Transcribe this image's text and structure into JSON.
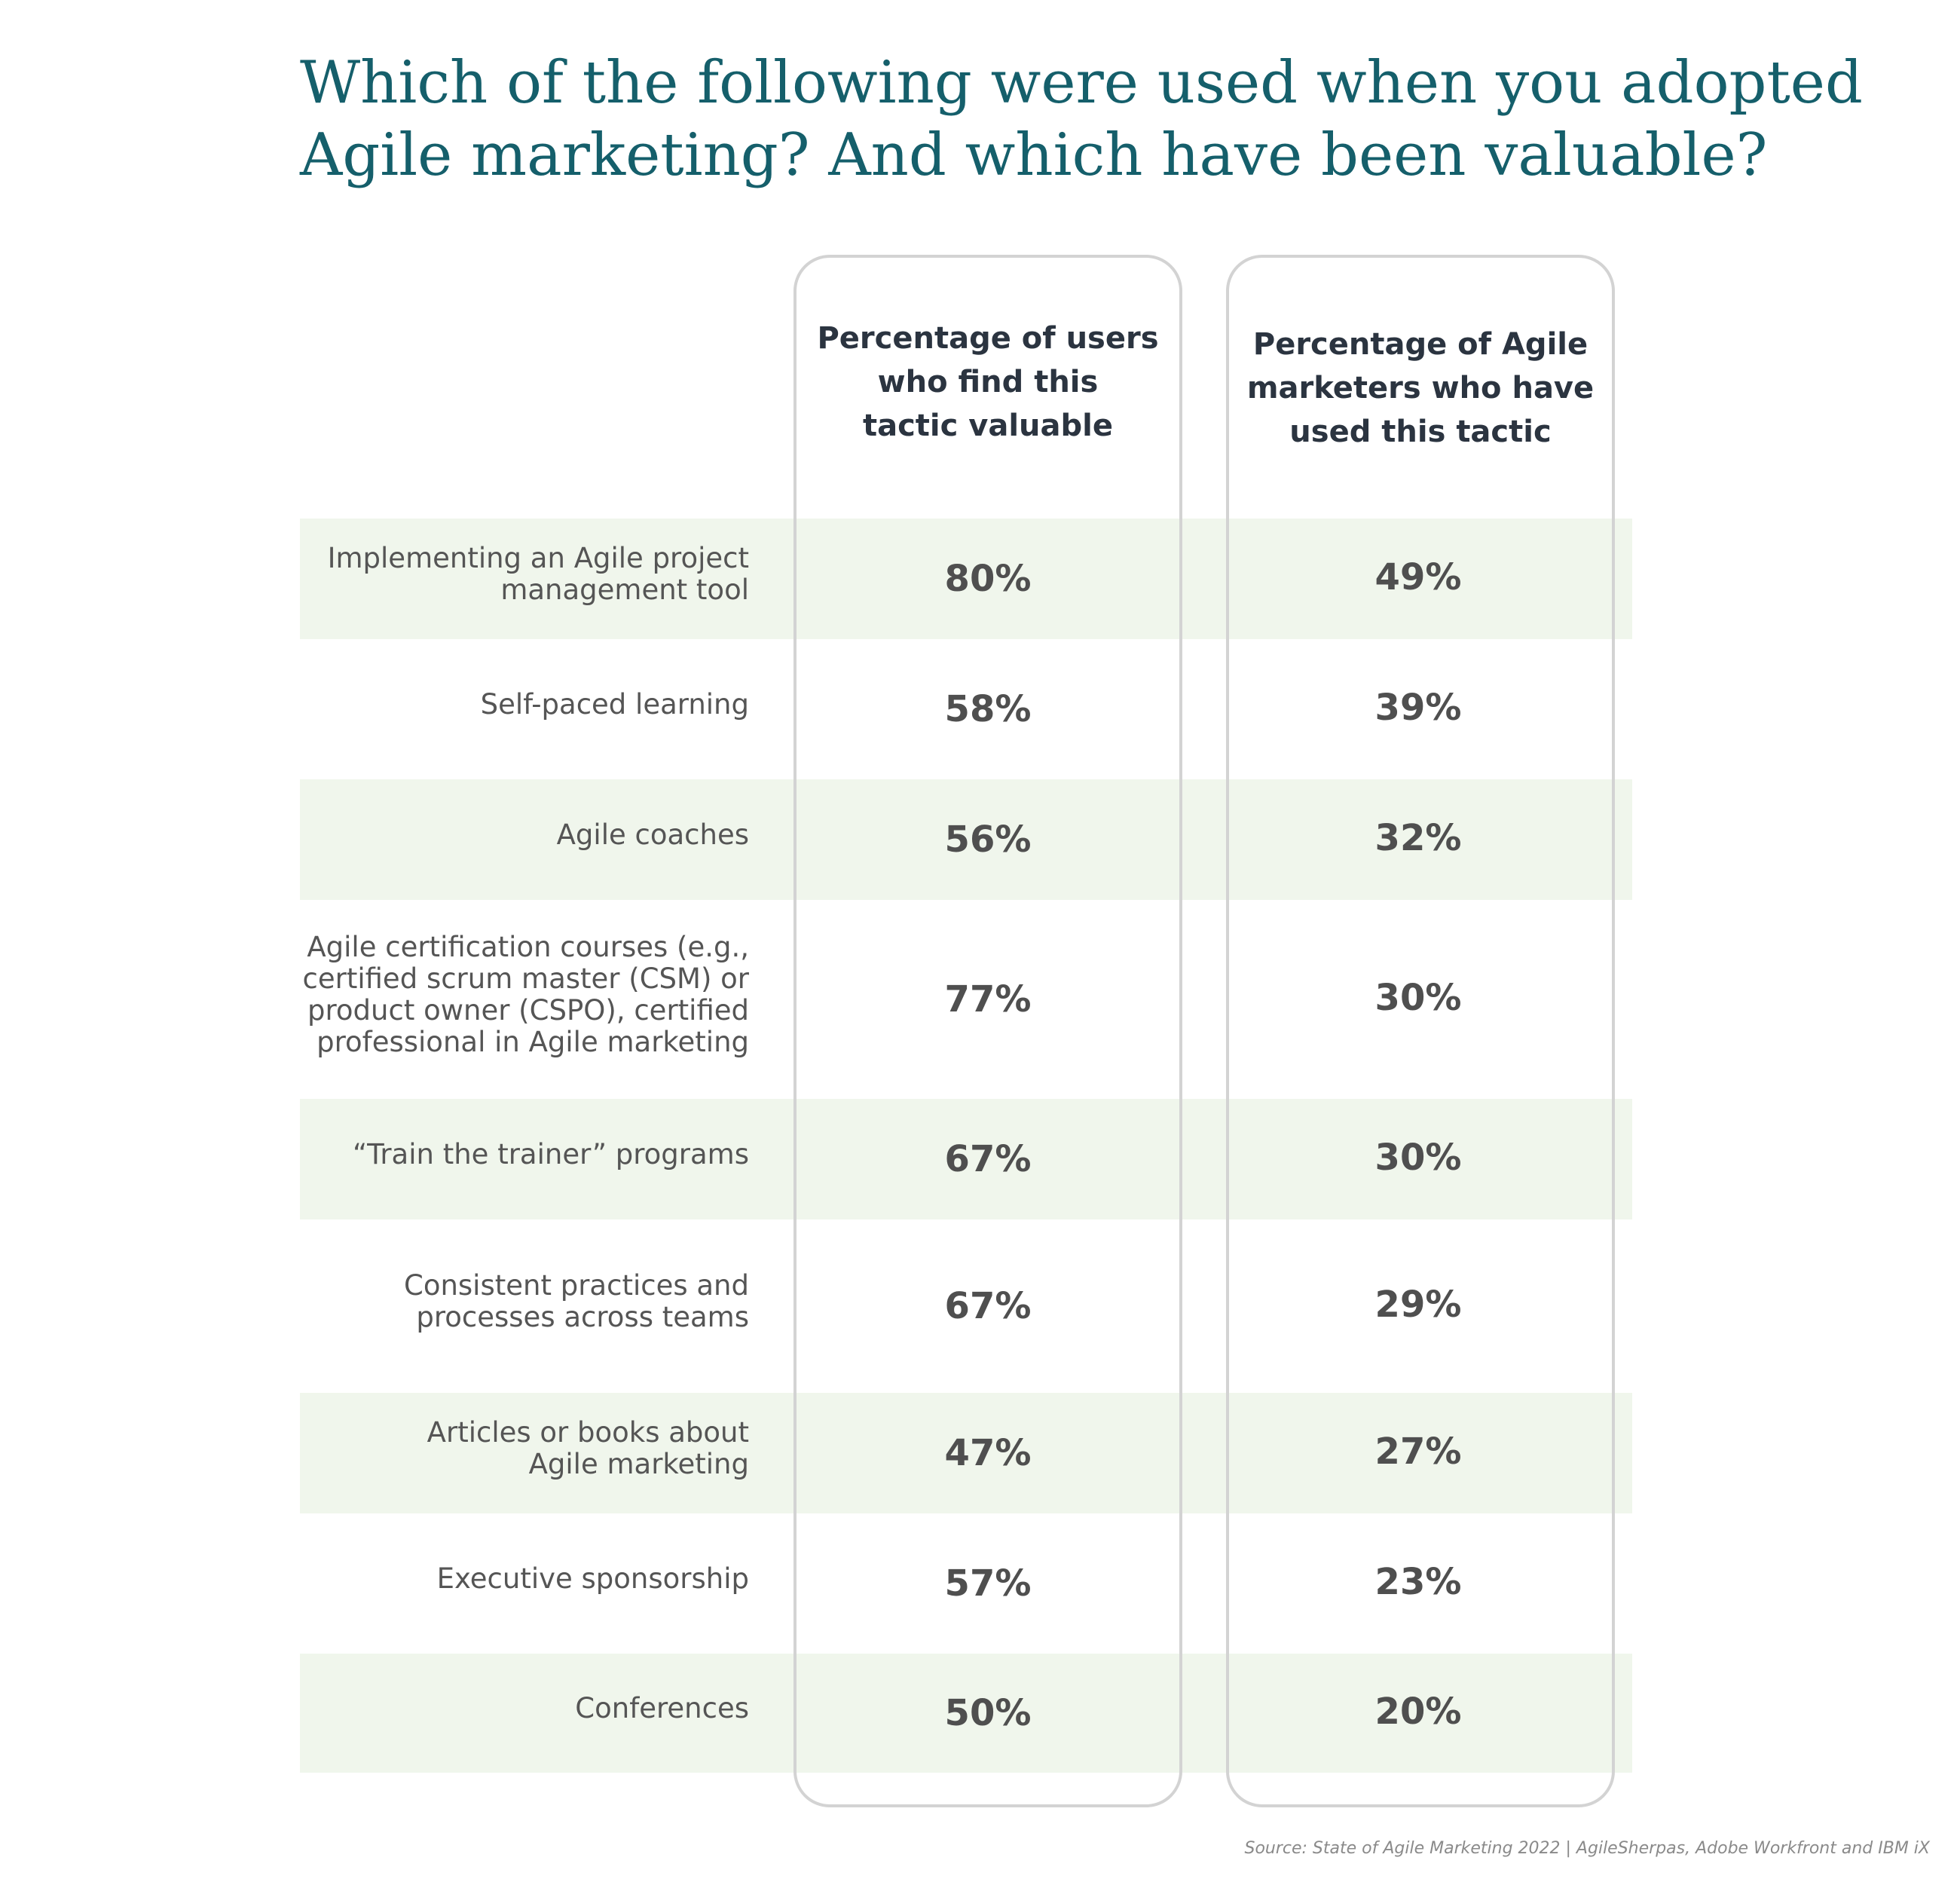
{
  "title": {
    "line1": "Which of the following were used when you adopted",
    "line2": "Agile marketing? And which have been valuable?"
  },
  "columns": {
    "valuable": [
      "Percentage of users",
      "who find this",
      "tactic valuable"
    ],
    "used": [
      "Percentage of Agile",
      "marketers who have",
      "used this tactic"
    ]
  },
  "source": "Source: State of Agile Marketing 2022 | AgileSherpas, Adobe Workfront and IBM iX",
  "colors": {
    "title": "#155f6b",
    "band": "#f0f6ec",
    "border": "#d3d3d3"
  },
  "chart_data": {
    "type": "table",
    "columns": [
      "Percentage of users who find this tactic valuable",
      "Percentage of Agile marketers who have used this tactic"
    ],
    "rows": [
      {
        "label": [
          "Implementing an Agile project",
          "management tool"
        ],
        "valuable": "80%",
        "used": "49%",
        "shaded": true
      },
      {
        "label": [
          "Self-paced learning"
        ],
        "valuable": "58%",
        "used": "39%",
        "shaded": false
      },
      {
        "label": [
          "Agile coaches"
        ],
        "valuable": "56%",
        "used": "32%",
        "shaded": true
      },
      {
        "label": [
          "Agile certification courses (e.g.,",
          "certified scrum master (CSM) or",
          "product owner (CSPO), certified",
          "professional in Agile marketing"
        ],
        "valuable": "77%",
        "used": "30%",
        "shaded": false
      },
      {
        "label": [
          "“Train the trainer” programs"
        ],
        "valuable": "67%",
        "used": "30%",
        "shaded": true
      },
      {
        "label": [
          "Consistent practices and",
          "processes across teams"
        ],
        "valuable": "67%",
        "used": "29%",
        "shaded": false
      },
      {
        "label": [
          "Articles or books about",
          "Agile marketing"
        ],
        "valuable": "47%",
        "used": "27%",
        "shaded": true
      },
      {
        "label": [
          "Executive sponsorship"
        ],
        "valuable": "57%",
        "used": "23%",
        "shaded": false
      },
      {
        "label": [
          "Conferences"
        ],
        "valuable": "50%",
        "used": "20%",
        "shaded": true
      }
    ]
  }
}
